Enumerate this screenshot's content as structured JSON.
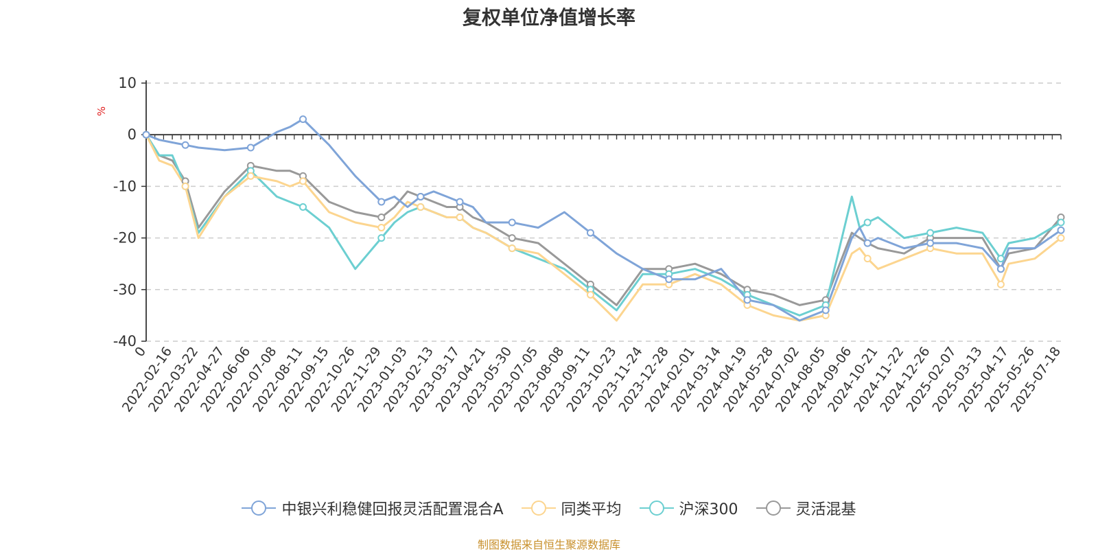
{
  "chart_data": {
    "type": "line",
    "title": "复权单位净值增长率",
    "ylabel": "%",
    "ylim": [
      -40,
      10
    ],
    "yticks": [
      "10",
      "0",
      "-10",
      "-20",
      "-30",
      "-40"
    ],
    "grid": true,
    "legend_position": "bottom-center",
    "x_tick_labels": [
      "0",
      "2022-02-16",
      "2022-03-22",
      "2022-04-27",
      "2022-06-06",
      "2022-07-08",
      "2022-08-11",
      "2022-09-15",
      "2022-10-26",
      "2022-11-29",
      "2023-01-03",
      "2023-02-13",
      "2023-03-17",
      "2023-04-21",
      "2023-05-30",
      "2023-07-05",
      "2023-08-08",
      "2023-09-11",
      "2023-10-23",
      "2023-11-24",
      "2023-12-28",
      "2024-02-01",
      "2024-03-14",
      "2024-04-19",
      "2024-05-28",
      "2024-07-02",
      "2024-08-05",
      "2024-09-06",
      "2024-10-21",
      "2024-11-22",
      "2024-12-26",
      "2025-02-07",
      "2025-03-13",
      "2025-04-17",
      "2025-05-26",
      "2025-07-18"
    ],
    "x": [
      0,
      0.5,
      1.0,
      1.5,
      2,
      3,
      4,
      5,
      5.5,
      6,
      7,
      8,
      9,
      9.5,
      10,
      10.5,
      11,
      11.5,
      12,
      12.5,
      13,
      14,
      15,
      16,
      17,
      18,
      19,
      20,
      21,
      22,
      23,
      24,
      25,
      26,
      27,
      27.3,
      27.6,
      28,
      29,
      30,
      31,
      32,
      32.7,
      33,
      34,
      35
    ],
    "series": [
      {
        "name": "中银兴利稳健回报灵活配置混合A",
        "color": "#7fa4d8",
        "values": [
          0,
          -1,
          -1.5,
          -2,
          -2.5,
          -3,
          -2.5,
          0.5,
          1.5,
          3,
          -2,
          -8,
          -13,
          -12,
          -14,
          -12,
          -11,
          -12,
          -13,
          -14,
          -17,
          -17,
          -18,
          -15,
          -19,
          -23,
          -26,
          -28,
          -28,
          -26,
          -32,
          -33,
          -36,
          -34,
          -20,
          -18,
          -21,
          -20,
          -22,
          -21,
          -21,
          -22,
          -26,
          -22,
          -22,
          -18.5
        ]
      },
      {
        "name": "同类平均",
        "color": "#fcd58f",
        "values": [
          0,
          -5,
          -6,
          -10,
          -20,
          -12,
          -8,
          -9,
          -10,
          -9,
          -15,
          -17,
          -18,
          -16,
          -13,
          -14,
          -15,
          -16,
          -16,
          -18,
          -19,
          -22,
          -23,
          -27,
          -31,
          -36,
          -29,
          -29,
          -27,
          -29,
          -33,
          -35,
          -36,
          -35,
          -23,
          -22,
          -24,
          -26,
          -24,
          -22,
          -23,
          -23,
          -29,
          -25,
          -24,
          -20
        ]
      },
      {
        "name": "沪深300",
        "color": "#6ccfd1",
        "values": [
          0,
          -4,
          -4,
          -10,
          -19,
          -12,
          -7,
          -12,
          -13,
          -14,
          -18,
          -26,
          -20,
          -17,
          -15,
          -14,
          -15,
          -16,
          -16,
          -18,
          -19,
          -22,
          -24,
          -26,
          -30,
          -34,
          -27,
          -27,
          -26,
          -28,
          -31,
          -33,
          -35,
          -33,
          -12,
          -18,
          -17,
          -16,
          -20,
          -19,
          -18,
          -19,
          -24,
          -21,
          -20,
          -17
        ]
      },
      {
        "name": "灵活混基",
        "color": "#999999",
        "values": [
          0,
          -4,
          -5,
          -9,
          -18,
          -11,
          -6,
          -7,
          -7,
          -8,
          -13,
          -15,
          -16,
          -14,
          -11,
          -12,
          -13,
          -14,
          -14,
          -16,
          -17,
          -20,
          -21,
          -25,
          -29,
          -33,
          -26,
          -26,
          -25,
          -27,
          -30,
          -31,
          -33,
          -32,
          -19,
          -20,
          -21,
          -22,
          -23,
          -20,
          -20,
          -20,
          -26,
          -23,
          -22,
          -16
        ]
      }
    ]
  },
  "footer": {
    "source": "制图数据来自恒生聚源数据库"
  }
}
